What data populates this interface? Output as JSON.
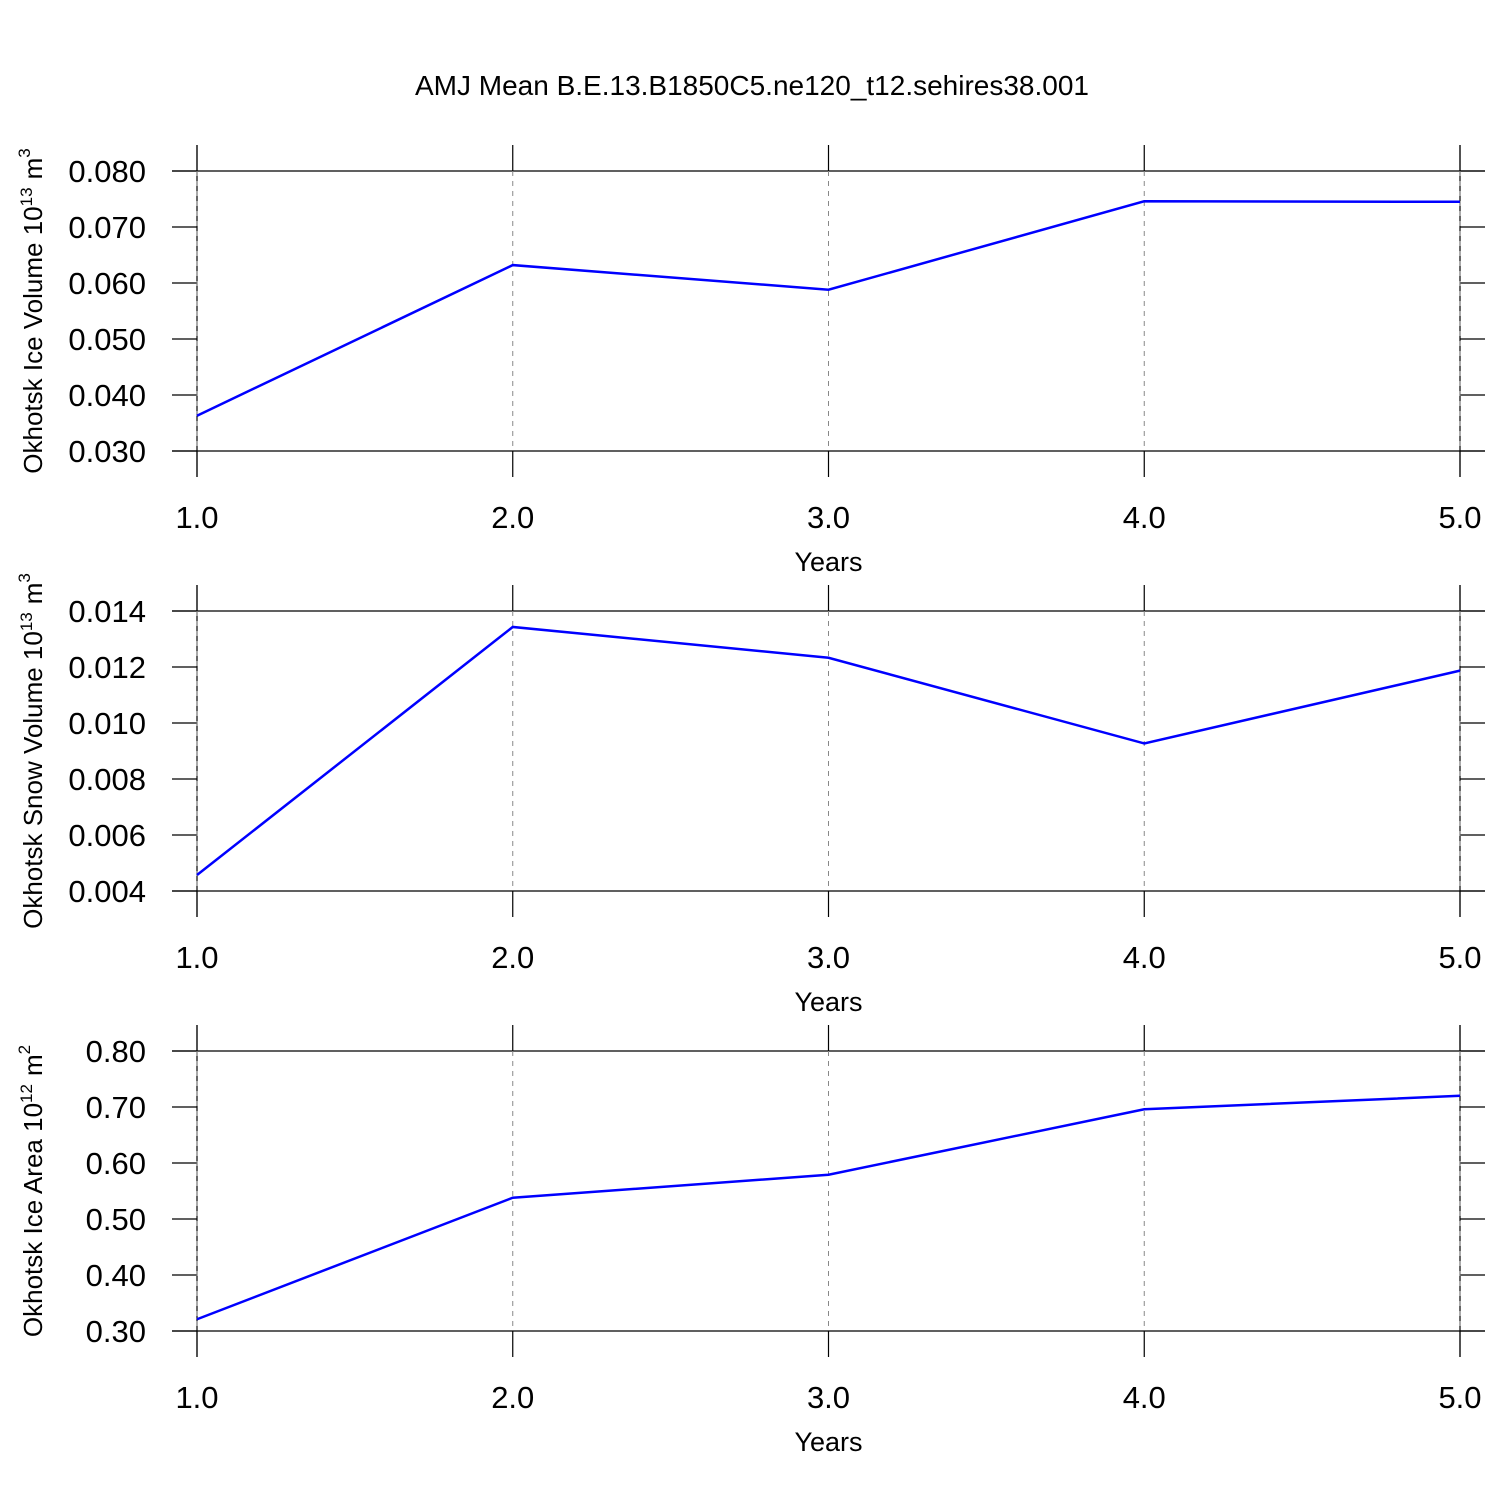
{
  "chart_data": [
    {
      "type": "line",
      "title": "AMJ Mean B.E.13.B1850C5.ne120_t12.sehires38.001",
      "ylabel": "Okhotsk Ice Volume 10",
      "ylabel_exp": "13",
      "ylabel_unit": "m",
      "ylabel_unit_exp": "3",
      "xlabel": "Years",
      "x": [
        1,
        2,
        3,
        4,
        5
      ],
      "series": [
        {
          "color": "#0000ff",
          "values": [
            0.0363,
            0.0632,
            0.0588,
            0.0746,
            0.0745
          ]
        }
      ],
      "xlim": [
        1,
        5
      ],
      "xticks": [
        {
          "value": 1,
          "label": "1.0"
        },
        {
          "value": 2,
          "label": "2.0"
        },
        {
          "value": 3,
          "label": "3.0"
        },
        {
          "value": 4,
          "label": "4.0"
        },
        {
          "value": 5,
          "label": "5.0"
        }
      ],
      "ylim": [
        0.03,
        0.08
      ],
      "yticks": [
        {
          "value": 0.03,
          "label": "0.030"
        },
        {
          "value": 0.04,
          "label": "0.040"
        },
        {
          "value": 0.05,
          "label": "0.050"
        },
        {
          "value": 0.06,
          "label": "0.060"
        },
        {
          "value": 0.07,
          "label": "0.070"
        },
        {
          "value": 0.08,
          "label": "0.080"
        }
      ],
      "grid": true
    },
    {
      "type": "line",
      "ylabel": "Okhotsk Snow Volume 10",
      "ylabel_exp": "13",
      "ylabel_unit": "m",
      "ylabel_unit_exp": "3",
      "xlabel": "Years",
      "x": [
        1,
        2,
        3,
        4,
        5
      ],
      "series": [
        {
          "color": "#0000ff",
          "values": [
            0.00457,
            0.01343,
            0.01233,
            0.00927,
            0.01187
          ]
        }
      ],
      "xlim": [
        1,
        5
      ],
      "xticks": [
        {
          "value": 1,
          "label": "1.0"
        },
        {
          "value": 2,
          "label": "2.0"
        },
        {
          "value": 3,
          "label": "3.0"
        },
        {
          "value": 4,
          "label": "4.0"
        },
        {
          "value": 5,
          "label": "5.0"
        }
      ],
      "ylim": [
        0.004,
        0.014
      ],
      "yticks": [
        {
          "value": 0.004,
          "label": "0.004"
        },
        {
          "value": 0.006,
          "label": "0.006"
        },
        {
          "value": 0.008,
          "label": "0.008"
        },
        {
          "value": 0.01,
          "label": "0.010"
        },
        {
          "value": 0.012,
          "label": "0.012"
        },
        {
          "value": 0.014,
          "label": "0.014"
        }
      ],
      "grid": true
    },
    {
      "type": "line",
      "ylabel": "Okhotsk Ice Area 10",
      "ylabel_exp": "12",
      "ylabel_unit": "m",
      "ylabel_unit_exp": "2",
      "xlabel": "Years",
      "x": [
        1,
        2,
        3,
        4,
        5
      ],
      "series": [
        {
          "color": "#0000ff",
          "values": [
            0.321,
            0.538,
            0.579,
            0.696,
            0.72
          ]
        }
      ],
      "xlim": [
        1,
        5
      ],
      "xticks": [
        {
          "value": 1,
          "label": "1.0"
        },
        {
          "value": 2,
          "label": "2.0"
        },
        {
          "value": 3,
          "label": "3.0"
        },
        {
          "value": 4,
          "label": "4.0"
        },
        {
          "value": 5,
          "label": "5.0"
        }
      ],
      "ylim": [
        0.3,
        0.8
      ],
      "yticks": [
        {
          "value": 0.3,
          "label": "0.30"
        },
        {
          "value": 0.4,
          "label": "0.40"
        },
        {
          "value": 0.5,
          "label": "0.50"
        },
        {
          "value": 0.6,
          "label": "0.60"
        },
        {
          "value": 0.7,
          "label": "0.70"
        },
        {
          "value": 0.8,
          "label": "0.80"
        }
      ],
      "grid": true
    }
  ]
}
